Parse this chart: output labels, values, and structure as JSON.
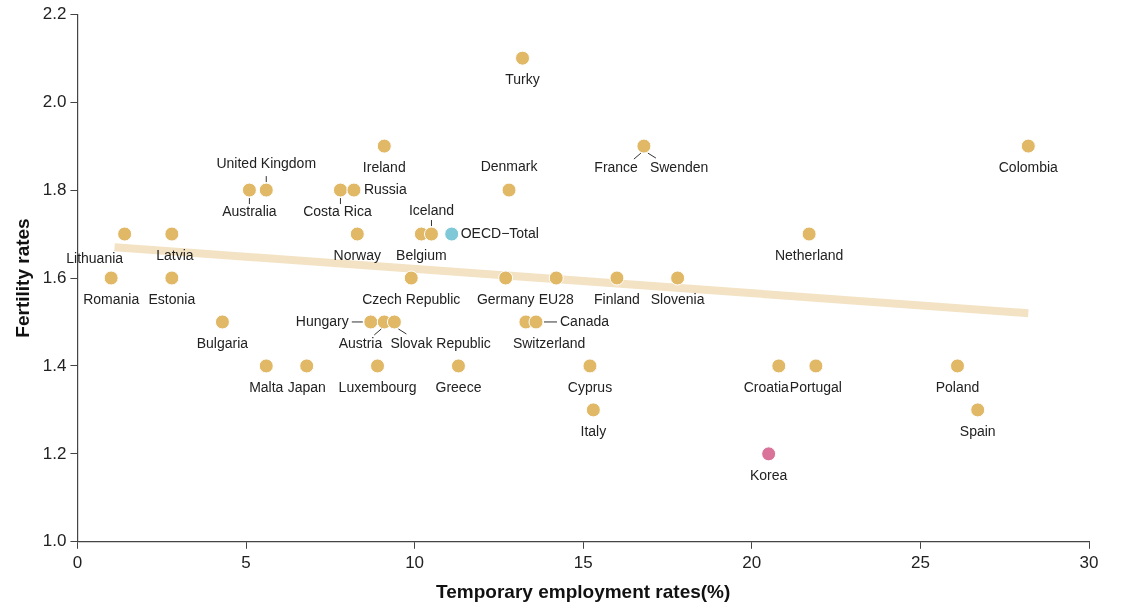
{
  "chart_data": {
    "type": "scatter",
    "xlabel": "Temporary employment rates(%)",
    "ylabel": "Fertility rates",
    "xlim": [
      0,
      30
    ],
    "xticks": [
      0,
      5,
      10,
      15,
      20,
      25,
      30
    ],
    "ylim": [
      1.0,
      2.2
    ],
    "yticks": [
      {
        "value": 1.0,
        "label": "1.0"
      },
      {
        "value": 1.2,
        "label": "1.2"
      },
      {
        "value": 1.4,
        "label": "1.4"
      },
      {
        "value": 1.6,
        "label": "1.6"
      },
      {
        "value": 1.8,
        "label": "1.8"
      },
      {
        "value": 2.0,
        "label": "2.0"
      },
      {
        "value": 2.2,
        "label": "2.2"
      }
    ],
    "grid": false,
    "legend": false,
    "marker": "circle",
    "series": [
      {
        "type": "line",
        "marker": "none",
        "color": "#f3e3c4",
        "x": [
          1.1,
          28.2
        ],
        "values": [
          1.67,
          1.52
        ]
      },
      {
        "x": [
          1.4,
          1.0,
          2.8,
          2.8,
          4.3,
          5.1,
          5.6,
          5.6,
          6.8,
          7.8,
          8.2,
          8.3,
          9.1,
          8.9,
          8.7,
          9.1,
          9.4,
          9.9,
          10.2,
          10.5,
          11.1,
          11.3,
          13.2,
          12.8,
          12.7,
          13.3,
          13.6,
          14.2,
          15.2,
          15.3,
          16.0,
          16.8,
          17.8,
          20.5,
          20.8,
          21.9,
          21.7,
          26.1,
          26.7,
          28.2
        ],
        "values": [
          1.7,
          1.6,
          1.7,
          1.6,
          1.5,
          1.8,
          1.8,
          1.4,
          1.4,
          1.8,
          1.8,
          1.7,
          1.9,
          1.4,
          1.5,
          1.5,
          1.5,
          1.6,
          1.7,
          1.7,
          1.7,
          1.4,
          2.1,
          1.8,
          1.6,
          1.5,
          1.5,
          1.6,
          1.4,
          1.3,
          1.6,
          1.9,
          1.6,
          1.2,
          1.4,
          1.4,
          1.7,
          1.4,
          1.3,
          1.9
        ],
        "colors": [
          "#e0b866",
          "#e0b866",
          "#e0b866",
          "#e0b866",
          "#e0b866",
          "#e0b866",
          "#e0b866",
          "#e0b866",
          "#e0b866",
          "#e0b866",
          "#e0b866",
          "#e0b866",
          "#e0b866",
          "#e0b866",
          "#e0b866",
          "#e0b866",
          "#e0b866",
          "#e0b866",
          "#e0b866",
          "#e0b866",
          "#7ec8d8",
          "#e0b866",
          "#e0b866",
          "#e0b866",
          "#e0b866",
          "#e0b866",
          "#e0b866",
          "#e0b866",
          "#e0b866",
          "#e0b866",
          "#e0b866",
          "#e0b866",
          "#e0b866",
          "#d9739a",
          "#e0b866",
          "#e0b866",
          "#e0b866",
          "#e0b866",
          "#e0b866",
          "#e0b866"
        ]
      }
    ],
    "annotations": [
      {
        "text": "Lithuania",
        "x": 1.4,
        "y": 1.7
      },
      {
        "text": "Romania",
        "x": 1.0,
        "y": 1.6
      },
      {
        "text": "Latvia",
        "x": 2.8,
        "y": 1.7
      },
      {
        "text": "Estonia",
        "x": 2.8,
        "y": 1.6
      },
      {
        "text": "Bulgaria",
        "x": 4.3,
        "y": 1.5
      },
      {
        "text": "Australia",
        "x": 5.1,
        "y": 1.8
      },
      {
        "text": "United Kingdom",
        "x": 5.6,
        "y": 1.8
      },
      {
        "text": "Malta",
        "x": 5.6,
        "y": 1.4
      },
      {
        "text": "Japan",
        "x": 6.8,
        "y": 1.4
      },
      {
        "text": "Costa Rica",
        "x": 7.8,
        "y": 1.8
      },
      {
        "text": "Russia",
        "x": 8.2,
        "y": 1.8
      },
      {
        "text": "Norway",
        "x": 8.3,
        "y": 1.7
      },
      {
        "text": "Ireland",
        "x": 9.1,
        "y": 1.9
      },
      {
        "text": "Luxembourg",
        "x": 8.9,
        "y": 1.4
      },
      {
        "text": "Hungary",
        "x": 8.7,
        "y": 1.5
      },
      {
        "text": "Austria",
        "x": 9.1,
        "y": 1.5
      },
      {
        "text": "Slovak Republic",
        "x": 9.4,
        "y": 1.5
      },
      {
        "text": "Czech Republic",
        "x": 9.9,
        "y": 1.6
      },
      {
        "text": "Belgium",
        "x": 10.2,
        "y": 1.7
      },
      {
        "text": "Iceland",
        "x": 10.5,
        "y": 1.7
      },
      {
        "text": "OECD−Total",
        "x": 11.1,
        "y": 1.7
      },
      {
        "text": "Greece",
        "x": 11.3,
        "y": 1.4
      },
      {
        "text": "Turky",
        "x": 13.2,
        "y": 2.1
      },
      {
        "text": "Denmark",
        "x": 12.8,
        "y": 1.8
      },
      {
        "text": "Germany",
        "x": 12.7,
        "y": 1.6
      },
      {
        "text": "Switzerland",
        "x": 13.3,
        "y": 1.5
      },
      {
        "text": "Canada",
        "x": 13.6,
        "y": 1.5
      },
      {
        "text": "EU28",
        "x": 14.2,
        "y": 1.6
      },
      {
        "text": "Cyprus",
        "x": 15.2,
        "y": 1.4
      },
      {
        "text": "Italy",
        "x": 15.3,
        "y": 1.3
      },
      {
        "text": "Finland",
        "x": 16.0,
        "y": 1.6
      },
      {
        "text": "France",
        "x": 16.8,
        "y": 1.9
      },
      {
        "text": "Swenden",
        "x": 16.8,
        "y": 1.9
      },
      {
        "text": "Slovenia",
        "x": 17.8,
        "y": 1.6
      },
      {
        "text": "Korea",
        "x": 20.5,
        "y": 1.2
      },
      {
        "text": "Croatia",
        "x": 20.8,
        "y": 1.4
      },
      {
        "text": "Portugal",
        "x": 21.9,
        "y": 1.4
      },
      {
        "text": "Netherland",
        "x": 21.7,
        "y": 1.7
      },
      {
        "text": "Poland",
        "x": 26.1,
        "y": 1.4
      },
      {
        "text": "Spain",
        "x": 26.7,
        "y": 1.3
      },
      {
        "text": "Colombia",
        "x": 28.2,
        "y": 1.9
      }
    ]
  }
}
